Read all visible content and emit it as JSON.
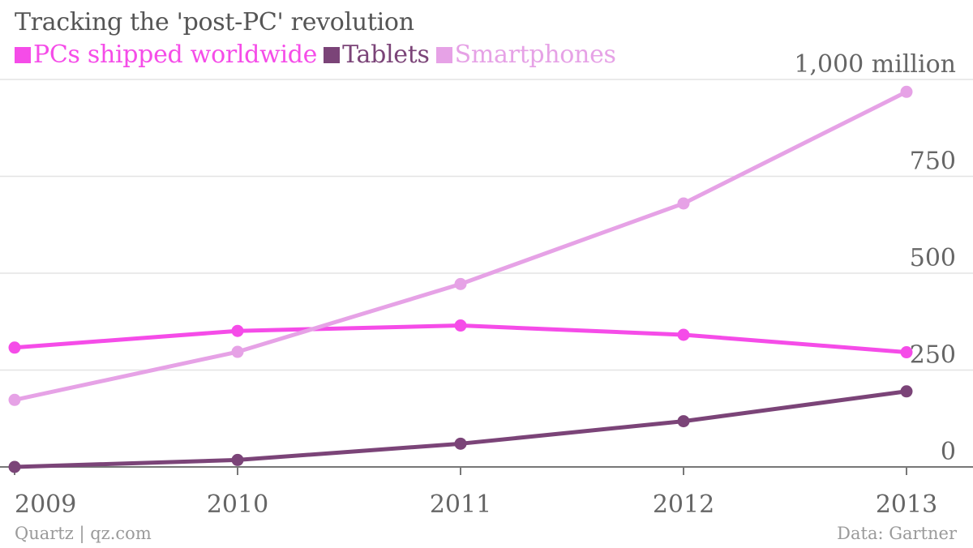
{
  "title": "Tracking the 'post-PC' revolution",
  "legend": [
    {
      "label": "PCs shipped worldwide",
      "color": "#f54ce8"
    },
    {
      "label": "Tablets",
      "color": "#7b4478"
    },
    {
      "label": "Smartphones",
      "color": "#e6a2e6"
    }
  ],
  "footer": {
    "source_left": "Quartz | qz.com",
    "source_right": "Data: Gartner"
  },
  "chart_data": {
    "type": "line",
    "x": [
      "2009",
      "2010",
      "2011",
      "2012",
      "2013"
    ],
    "ylim": [
      0,
      1000
    ],
    "yticks": [
      {
        "value": 0,
        "label": "0"
      },
      {
        "value": 250,
        "label": "250"
      },
      {
        "value": 500,
        "label": "500"
      },
      {
        "value": 750,
        "label": "750"
      },
      {
        "value": 1000,
        "label": "1,000 million"
      }
    ],
    "grid": true,
    "series": [
      {
        "name": "PCs shipped worldwide",
        "color": "#f54ce8",
        "values": [
          308,
          351,
          365,
          341,
          296
        ]
      },
      {
        "name": "Tablets",
        "color": "#7b4478",
        "values": [
          0,
          18,
          60,
          118,
          195
        ]
      },
      {
        "name": "Smartphones",
        "color": "#e6a2e6",
        "values": [
          173,
          297,
          472,
          680,
          968
        ]
      }
    ]
  }
}
